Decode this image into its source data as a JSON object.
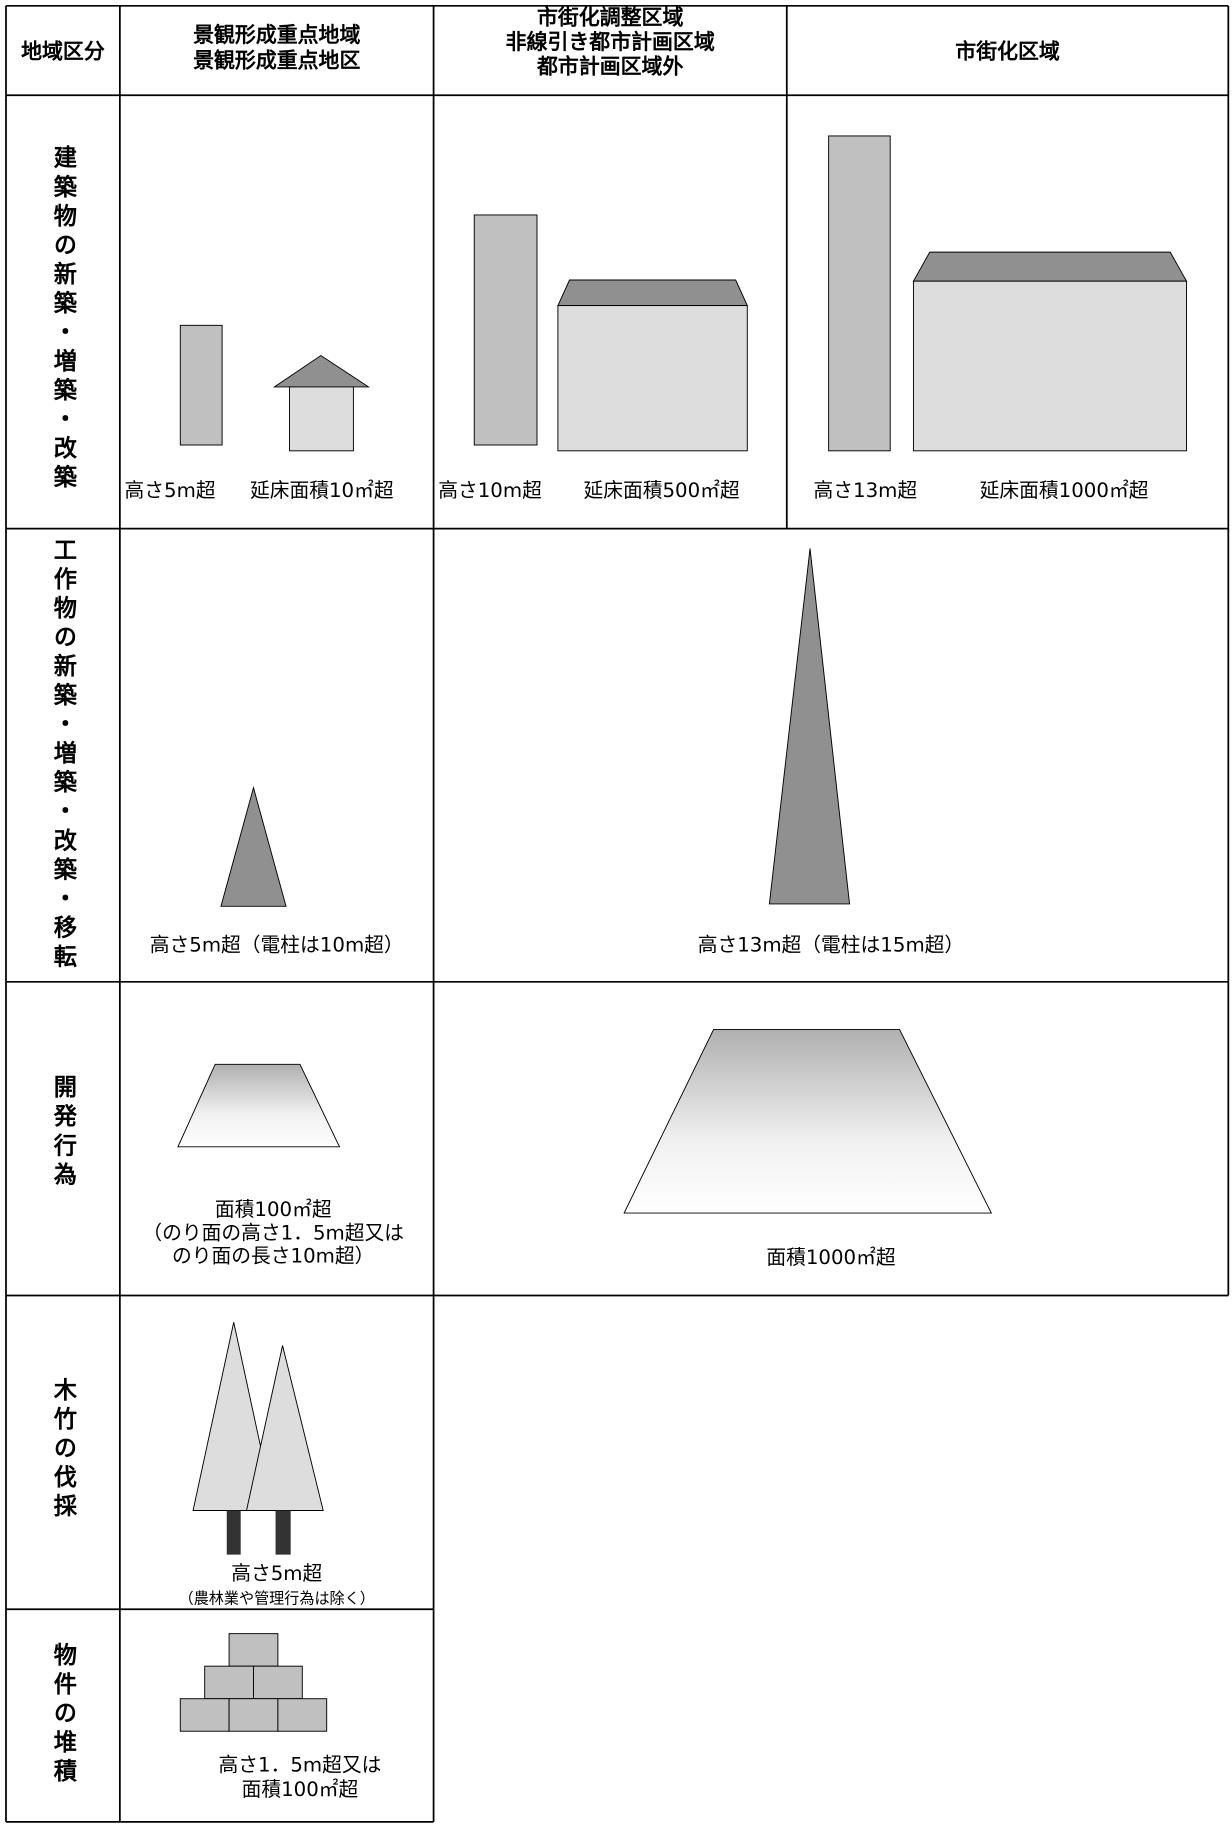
{
  "header": [
    [
      "地域区分"
    ],
    [
      "景観形成重点地域",
      "景観形成重点地区"
    ],
    [
      "市街化調整区域",
      "非線引き都市計画区域",
      "都市計画区域外"
    ],
    [
      "市街化区域"
    ]
  ],
  "rows": [
    {
      "label": "建築物の新築・増築・改築",
      "captions": [
        [
          "高さ5m超"
        ],
        [
          "延床面積10㎡超"
        ],
        [
          "高さ10m超"
        ],
        [
          "延床面積500㎡超"
        ],
        [
          "高さ13m超"
        ],
        [
          "延床面積1000㎡超"
        ]
      ]
    },
    {
      "label": "工作物の新築・増築・改築・移転",
      "captions": [
        [
          "高さ5m超（電柱は10m超）"
        ],
        [
          "高さ13m超（電柱は15m超）"
        ]
      ]
    },
    {
      "label": "開発行為",
      "captions": [
        [
          "面積100㎡超",
          "（のり面の高さ1．5m超又は",
          "のり面の長さ10m超）"
        ],
        [
          "面積1000㎡超"
        ]
      ]
    },
    {
      "label": "木竹の伐採",
      "captions": [
        [
          "高さ5m超",
          "（農林業や管理行為は除く）"
        ]
      ]
    },
    {
      "label": "物件の堆積",
      "captions": [
        [
          "高さ1．5m超又は",
          "面積100㎡超"
        ]
      ]
    }
  ]
}
